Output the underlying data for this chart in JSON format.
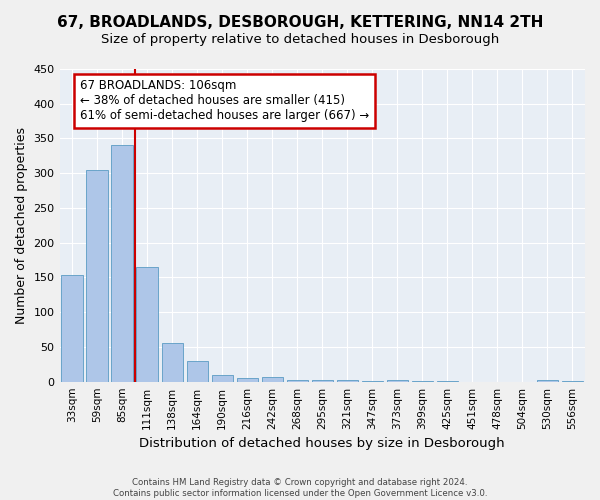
{
  "title": "67, BROADLANDS, DESBOROUGH, KETTERING, NN14 2TH",
  "subtitle": "Size of property relative to detached houses in Desborough",
  "xlabel": "Distribution of detached houses by size in Desborough",
  "ylabel": "Number of detached properties",
  "bins": [
    "33sqm",
    "59sqm",
    "85sqm",
    "111sqm",
    "138sqm",
    "164sqm",
    "190sqm",
    "216sqm",
    "242sqm",
    "268sqm",
    "295sqm",
    "321sqm",
    "347sqm",
    "373sqm",
    "399sqm",
    "425sqm",
    "451sqm",
    "478sqm",
    "504sqm",
    "530sqm",
    "556sqm"
  ],
  "bar_heights": [
    153,
    305,
    340,
    165,
    55,
    30,
    10,
    5,
    7,
    3,
    2,
    3,
    1,
    2,
    1,
    1,
    0,
    0,
    0,
    2,
    1
  ],
  "bar_color": "#aec6e8",
  "bar_edge_color": "#5a9bc4",
  "annotation_text": "67 BROADLANDS: 106sqm\n← 38% of detached houses are smaller (415)\n61% of semi-detached houses are larger (667) →",
  "annotation_box_color": "#ffffff",
  "annotation_box_edge": "#cc0000",
  "red_line_color": "#cc0000",
  "red_line_x": 2.5,
  "ylim": [
    0,
    450
  ],
  "yticks": [
    0,
    50,
    100,
    150,
    200,
    250,
    300,
    350,
    400,
    450
  ],
  "bg_color": "#e8eef5",
  "fig_bg_color": "#f0f0f0",
  "footnote": "Contains HM Land Registry data © Crown copyright and database right 2024.\nContains public sector information licensed under the Open Government Licence v3.0.",
  "title_fontsize": 11,
  "subtitle_fontsize": 9.5,
  "ylabel_fontsize": 9,
  "xlabel_fontsize": 9.5
}
